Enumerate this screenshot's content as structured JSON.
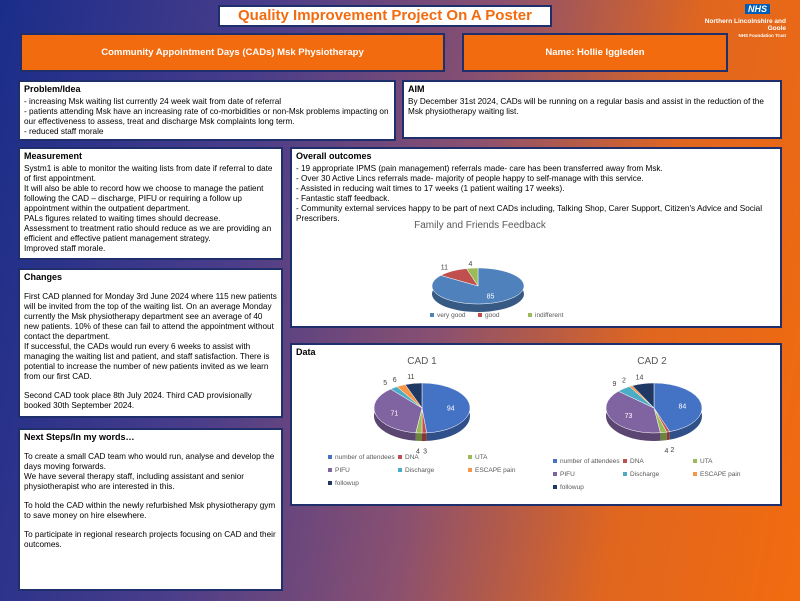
{
  "header": {
    "title": "Quality Improvement Project On A Poster",
    "logo": "NHS",
    "trust_name": "Northern Lincolnshire and Goole",
    "trust_type": "NHS Foundation Trust"
  },
  "banner": {
    "project": "Community Appointment Days (CADs) Msk Physiotherapy",
    "name": "Name: Hollie Iggleden"
  },
  "problem": {
    "title": "Problem/Idea",
    "lines": [
      "- increasing Msk waiting list currently 24 week wait from date of referral",
      "- patients attending Msk have an increasing rate of co-morbidities or non-Msk problems impacting on our effectiveness to assess, treat and discharge Msk complaints long term.",
      "- reduced staff morale"
    ]
  },
  "aim": {
    "title": "AIM",
    "lines": [
      "By December 31st 2024, CADs will be running on a regular basis and assist in the reduction of the Msk physiotherapy waiting list."
    ]
  },
  "measurement": {
    "title": "Measurement",
    "lines": [
      "Systm1 is able to monitor the waiting lists from date if referral to date of first appointment.",
      "It will also be able to record how we choose to manage the patient following the CAD – discharge, PIFU or requiring a follow up appointment within the outpatient department.",
      "PALs figures related to waiting times should decrease.",
      "Assessment to treatment ratio should reduce as we are providing an efficient and effective patient management strategy.",
      "Improved staff morale."
    ]
  },
  "outcomes": {
    "title": "Overall outcomes",
    "lines": [
      "- 19 appropriate IPMS (pain management) referrals made- care has been transferred away from Msk.",
      "- Over 30 Active Lincs referrals made- majority of people happy to self-manage with this service.",
      "- Assisted in reducing wait times to 17 weeks (1 patient waiting 17 weeks).",
      "- Fantastic staff feedback.",
      "- Community external services happy to be part of next CADs including, Talking Shop, Carer Support, Citizen's Advice and Social Prescribers."
    ]
  },
  "changes": {
    "title": "Changes",
    "paragraphs": [
      "First CAD planned for Monday 3rd June 2024 where 115 new patients will be invited from the top of the waiting list. On an average Monday currently the Msk physiotherapy department see an average of 40 new patients. 10% of these can fail to attend the appointment without contact the department.",
      "If successful, the CADs would run every 6 weeks to assist with managing the waiting list and patient, and staff satisfaction. There is potential to increase the number of new patients invited as we learn from our first CAD.",
      "Second CAD took place 8th July 2024. Third CAD provisionally booked 30th September 2024."
    ]
  },
  "next_steps": {
    "title": "Next Steps/In my words…",
    "paragraphs": [
      "To create a small CAD team who would run, analyse and develop the days moving forwards.",
      "We have several therapy staff, including assistant and senior physiotherapist who are interested in this.",
      "To hold the CAD within the newly refurbished Msk physiotherapy gym to save money on hire elsewhere.",
      "To participate in regional research projects focusing on CAD and their outcomes."
    ]
  },
  "data_section": {
    "title": "Data"
  },
  "chart_data": [
    {
      "type": "pie",
      "title": "Family and Friends Feedback",
      "categories": [
        "very good",
        "good",
        "indifferent"
      ],
      "values": [
        85,
        11,
        4
      ],
      "colors": [
        "#4f81bd",
        "#c0504d",
        "#9bbb59"
      ]
    },
    {
      "type": "pie",
      "title": "CAD 1",
      "categories": [
        "number of attendees",
        "DNA",
        "UTA",
        "PIFU",
        "Discharge",
        "ESCAPE pain",
        "followup"
      ],
      "values": [
        94,
        3,
        4,
        71,
        5,
        6,
        11
      ],
      "colors": [
        "#4472c4",
        "#c0504d",
        "#9bbb59",
        "#8064a2",
        "#4bacc6",
        "#f79646",
        "#1f3864"
      ]
    },
    {
      "type": "pie",
      "title": "CAD 2",
      "categories": [
        "number of attendees",
        "DNA",
        "UTA",
        "PIFU",
        "Discharge",
        "ESCAPE pain",
        "followup"
      ],
      "values": [
        84,
        2,
        4,
        73,
        9,
        2,
        14
      ],
      "colors": [
        "#4472c4",
        "#c0504d",
        "#9bbb59",
        "#8064a2",
        "#4bacc6",
        "#f79646",
        "#1f3864"
      ]
    }
  ]
}
